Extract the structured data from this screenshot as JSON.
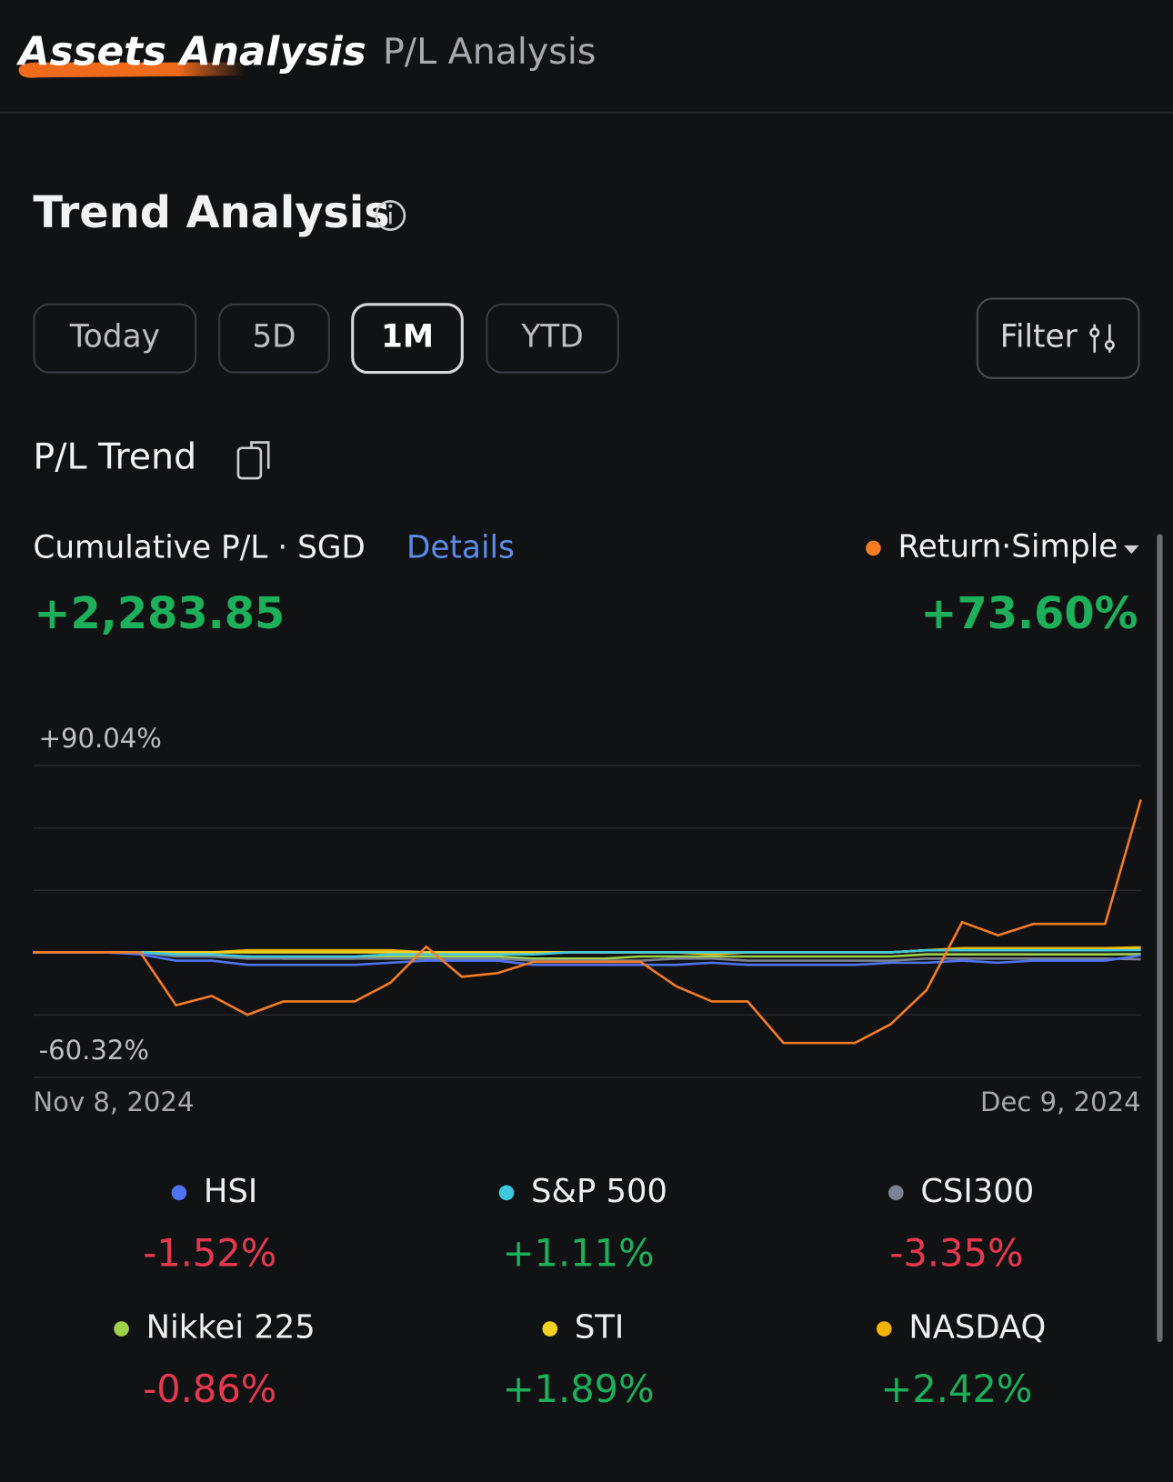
{
  "tabs": [
    "Assets Analysis",
    "P/L Analysis"
  ],
  "section_title": "Trend Analysis",
  "periods": [
    "Today",
    "5D",
    "1M",
    "YTD"
  ],
  "filter": "Filter",
  "subsection_title": "P/L Trend",
  "cumulative_label": "Cumulative P/L · SGD",
  "details": "Details",
  "cumulative_value": "+2,283.85",
  "chart_data": {
    "type": "line",
    "categories": [
      "Nov 8, 2024",
      null,
      null,
      null,
      null,
      null,
      null,
      null,
      null,
      null,
      null,
      null,
      null,
      null,
      null,
      null,
      null,
      null,
      null,
      null,
      null,
      null,
      null,
      null,
      null,
      null,
      null,
      null,
      null,
      null,
      null,
      "Dec 9, 2024"
    ],
    "ylim": [
      -60.32,
      90.04
    ],
    "yticks": [
      {
        "value": 90.04,
        "label": "+90.04%"
      },
      {
        "value": -60.32,
        "label": "-60.32%"
      }
    ],
    "grid": true,
    "series": [
      {
        "name": "Return·Simple",
        "color": "#f57c22",
        "change": 73.6,
        "change_label": "+73.60%",
        "values": [
          0,
          0,
          0,
          0,
          -25.5,
          -21.0,
          -30.1,
          -23.7,
          -23.7,
          -23.7,
          -14.6,
          2.7,
          -11.8,
          -10.0,
          -4.6,
          -4.6,
          -4.6,
          -4.6,
          -16.4,
          -23.7,
          -23.7,
          -43.7,
          -43.7,
          -43.7,
          -34.6,
          -18.2,
          14.6,
          8.2,
          13.7,
          13.7,
          13.7,
          73.6
        ]
      },
      {
        "name": "HSI",
        "color": "#4f74f0",
        "change": -1.52,
        "change_label": "-1.52%",
        "values": [
          0,
          0,
          0,
          -1,
          -4,
          -4,
          -6,
          -6,
          -6,
          -6,
          -5,
          -4,
          -4,
          -4,
          -6,
          -6,
          -6,
          -6,
          -6,
          -5,
          -6,
          -6,
          -6,
          -6,
          -5,
          -5,
          -4,
          -5,
          -4,
          -4,
          -4,
          -1.52
        ]
      },
      {
        "name": "S&P 500",
        "color": "#3ec9e0",
        "change": 1.11,
        "change_label": "+1.11%",
        "values": [
          0,
          0,
          0,
          0,
          -1,
          -1,
          -2,
          -2,
          -2,
          -2,
          -1,
          -1,
          -1,
          -1,
          -1,
          0,
          0,
          0,
          0,
          0,
          0,
          0,
          0,
          0,
          0,
          1,
          1,
          1,
          1,
          1,
          1,
          1.11
        ]
      },
      {
        "name": "CSI300",
        "color": "#7a8294",
        "change": -3.35,
        "change_label": "-3.35%",
        "values": [
          0,
          0,
          0,
          0,
          -2,
          -2,
          -3,
          -3,
          -3,
          -3,
          -3,
          -3,
          -3,
          -3,
          -4,
          -4,
          -4,
          -4,
          -3,
          -3,
          -4,
          -4,
          -4,
          -4,
          -4,
          -3,
          -3,
          -3,
          -3,
          -3,
          -3,
          -3.35
        ]
      },
      {
        "name": "Nikkei 225",
        "color": "#9fd24a",
        "change": -0.86,
        "change_label": "-0.86%",
        "values": [
          0,
          0,
          0,
          0,
          -1,
          -2,
          -2,
          -3,
          -3,
          -3,
          -2,
          -2,
          -2,
          -2,
          -3,
          -3,
          -3,
          -2,
          -2,
          -2,
          -2,
          -2,
          -2,
          -2,
          -2,
          -1,
          -1,
          -1,
          -1,
          -1,
          -1,
          -0.86
        ]
      },
      {
        "name": "STI",
        "color": "#f5d020",
        "change": 1.89,
        "change_label": "+1.89%",
        "values": [
          0,
          0,
          0,
          0,
          0,
          0,
          0,
          0,
          0,
          0,
          0,
          0,
          0,
          0,
          0,
          0,
          0,
          0,
          0,
          0,
          0,
          0,
          0,
          0,
          0,
          1,
          1,
          1,
          1,
          1,
          1,
          1.89
        ]
      },
      {
        "name": "NASDAQ",
        "color": "#f5b400",
        "change": 2.42,
        "change_label": "+2.42%",
        "values": [
          0,
          0,
          0,
          0,
          0,
          0,
          1,
          1,
          1,
          1,
          1,
          0,
          0,
          0,
          0,
          0,
          0,
          0,
          0,
          -1,
          0,
          0,
          0,
          0,
          0,
          1,
          2,
          2,
          2,
          2,
          2,
          2.42
        ]
      }
    ]
  }
}
